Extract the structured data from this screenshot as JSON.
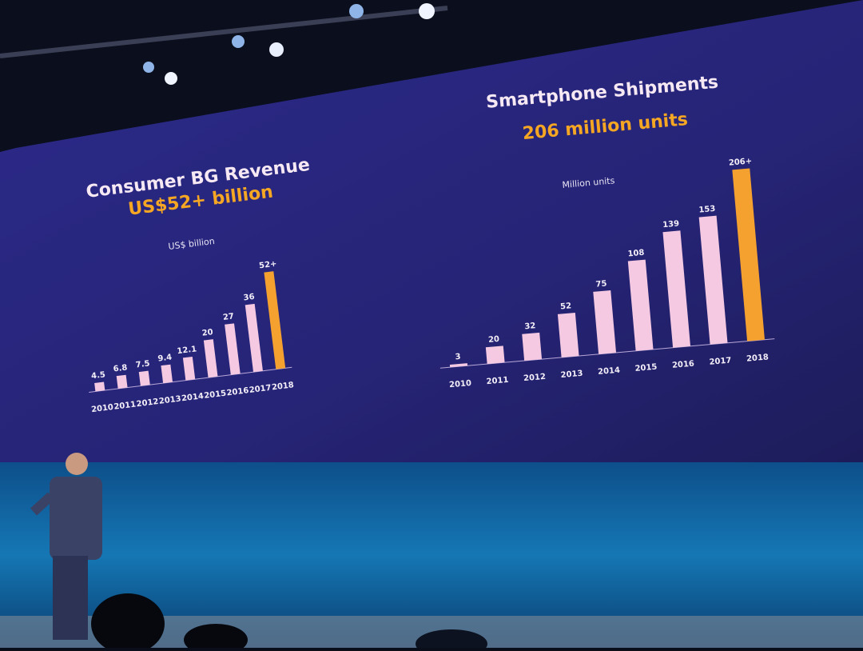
{
  "chart_data": [
    {
      "type": "bar",
      "title": "Consumer BG Revenue",
      "subtitle": "US$52+ billion",
      "unit_label": "US$ billion",
      "categories": [
        "2010",
        "2011",
        "2012",
        "2013",
        "2014",
        "2015",
        "2016",
        "2017",
        "2018"
      ],
      "values": [
        4.5,
        6.8,
        7.5,
        9.4,
        12.1,
        20,
        27,
        36,
        52
      ],
      "value_labels": [
        "4.5",
        "6.8",
        "7.5",
        "9.4",
        "12.1",
        "20",
        "27",
        "36",
        "52+"
      ],
      "colors": [
        "#f4c9e1",
        "#f4c9e1",
        "#f4c9e1",
        "#f4c9e1",
        "#f4c9e1",
        "#f4c9e1",
        "#f4c9e1",
        "#f4c9e1",
        "#f5a12f"
      ]
    },
    {
      "type": "bar",
      "title": "Smartphone Shipments",
      "subtitle": "206 million units",
      "unit_label": "Million units",
      "categories": [
        "2010",
        "2011",
        "2012",
        "2013",
        "2014",
        "2015",
        "2016",
        "2017",
        "2018"
      ],
      "values": [
        3,
        20,
        32,
        52,
        75,
        108,
        139,
        153,
        206
      ],
      "value_labels": [
        "3",
        "20",
        "32",
        "52",
        "75",
        "108",
        "139",
        "153",
        "206+"
      ],
      "colors": [
        "#f4c9e1",
        "#f4c9e1",
        "#f4c9e1",
        "#f4c9e1",
        "#f4c9e1",
        "#f4c9e1",
        "#f4c9e1",
        "#f4c9e1",
        "#f5a12f"
      ]
    }
  ]
}
